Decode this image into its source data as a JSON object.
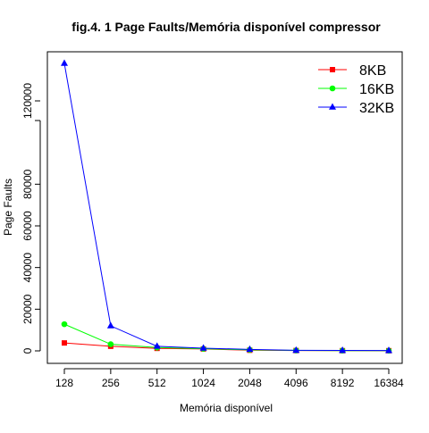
{
  "chart_data": {
    "type": "line",
    "title": "fig.4. 1 Page Faults/Memória disponível  compressor",
    "xlabel": "Memória disponível",
    "ylabel": "Page Faults",
    "categories": [
      "128",
      "256",
      "512",
      "1024",
      "2048",
      "4096",
      "8192",
      "16384"
    ],
    "y_ticks": [
      0,
      20000,
      40000,
      60000,
      80000,
      120000
    ],
    "y_tick_labels": [
      "0",
      "20000",
      "40000",
      "60000",
      "80000",
      "120000"
    ],
    "ylim": [
      -5000,
      140000
    ],
    "grid": false,
    "legend_position": "top-right",
    "series": [
      {
        "name": "8KB",
        "color": "#ff0000",
        "marker": "square",
        "values": [
          3800,
          2200,
          1200,
          900,
          300,
          150,
          100,
          80
        ]
      },
      {
        "name": "16KB",
        "color": "#00ff00",
        "marker": "circle",
        "values": [
          12800,
          3200,
          1600,
          1000,
          500,
          200,
          120,
          90
        ]
      },
      {
        "name": "32KB",
        "color": "#0000ff",
        "marker": "triangle",
        "values": [
          138000,
          12000,
          2200,
          1300,
          700,
          250,
          200,
          150
        ]
      }
    ]
  }
}
